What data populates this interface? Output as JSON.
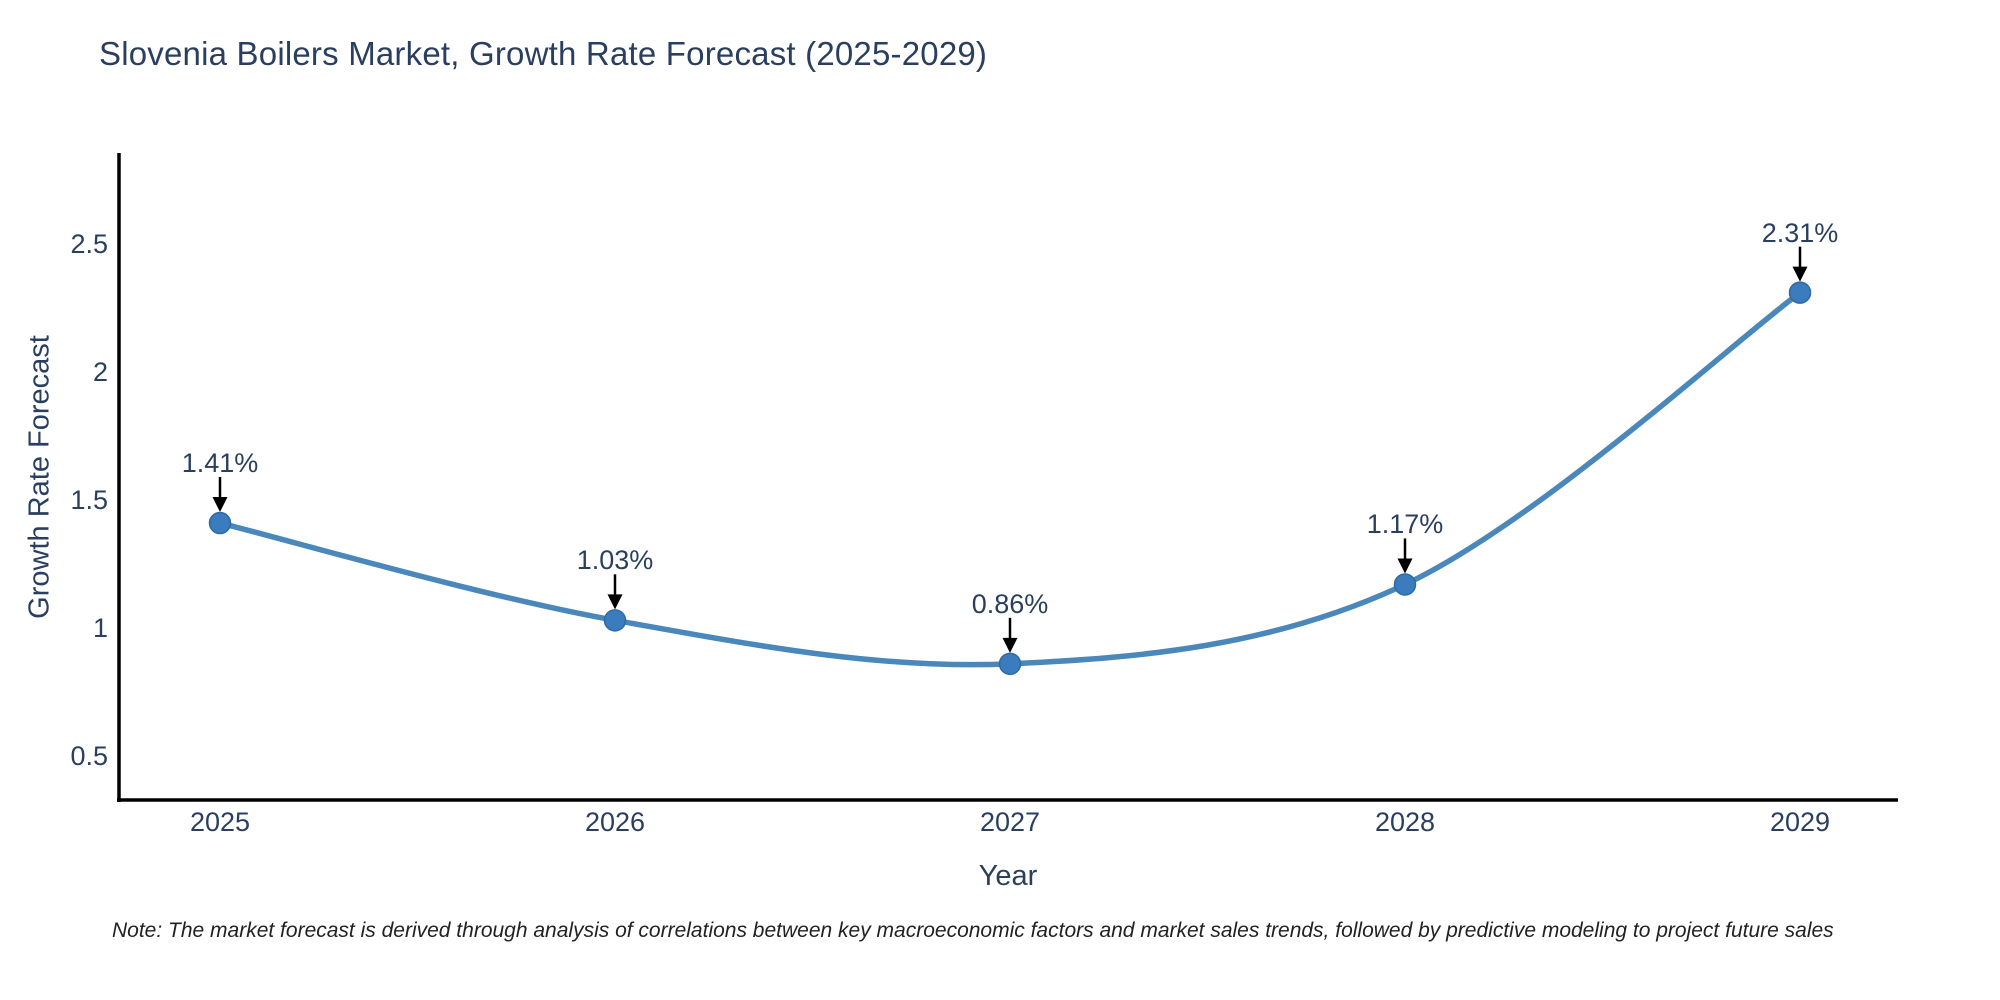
{
  "title": "Slovenia Boilers Market, Growth Rate Forecast (2025-2029)",
  "note": "Note: The market forecast is derived through analysis of correlations between key macroeconomic factors and market sales trends, followed by predictive modeling to project future sales",
  "colors": {
    "background": "#ffffff",
    "text": "#2a3f5f",
    "note_text": "#222222",
    "axis_line": "#000000",
    "line": "#4a87ba",
    "marker": "#3a7cbe",
    "marker_edge": "#2e6aa5",
    "arrow": "#000000"
  },
  "chart_data": {
    "type": "line",
    "curve": "spline",
    "title": "Slovenia Boilers Market, Growth Rate Forecast (2025-2029)",
    "xlabel": "Year",
    "ylabel": "Growth Rate Forecast",
    "x": [
      2025,
      2026,
      2027,
      2028,
      2029
    ],
    "series": [
      {
        "name": "Growth Rate Forecast",
        "values": [
          1.41,
          1.03,
          0.86,
          1.17,
          2.31
        ]
      }
    ],
    "point_labels": [
      "1.41%",
      "1.03%",
      "0.86%",
      "1.17%",
      "2.31%"
    ],
    "yticks": [
      0.5,
      1,
      1.5,
      2,
      2.5
    ],
    "ylim": [
      0.33,
      2.86
    ],
    "xlim": [
      2024.74,
      2029.25
    ],
    "grid": false,
    "legend": "none",
    "markers": true,
    "annotations_with_arrows": true
  }
}
